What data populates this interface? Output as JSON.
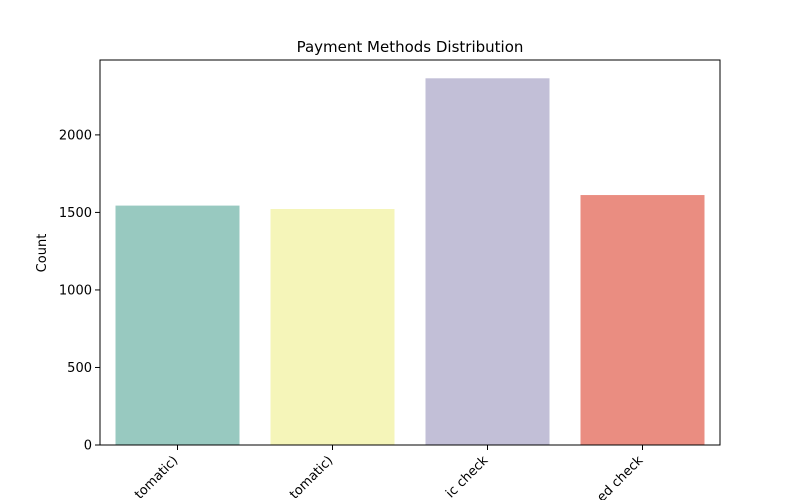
{
  "chart_data": {
    "type": "bar",
    "title": "Payment Methods Distribution",
    "xlabel": "",
    "ylabel": "Count",
    "categories": [
      "Bank transfer (automatic)",
      "Credit card (automatic)",
      "Electronic check",
      "Mailed check"
    ],
    "visible_tick_text": [
      "tomatic)",
      "tomatic)",
      "ic check",
      "ed check"
    ],
    "values": [
      1544,
      1522,
      2365,
      1612
    ],
    "colors": [
      "#98c9c0",
      "#f5f5b9",
      "#c2bfd7",
      "#ea8d81"
    ],
    "ylim": [
      0,
      2483
    ],
    "yticks": [
      0,
      500,
      1000,
      1500,
      2000
    ],
    "grid": false
  }
}
